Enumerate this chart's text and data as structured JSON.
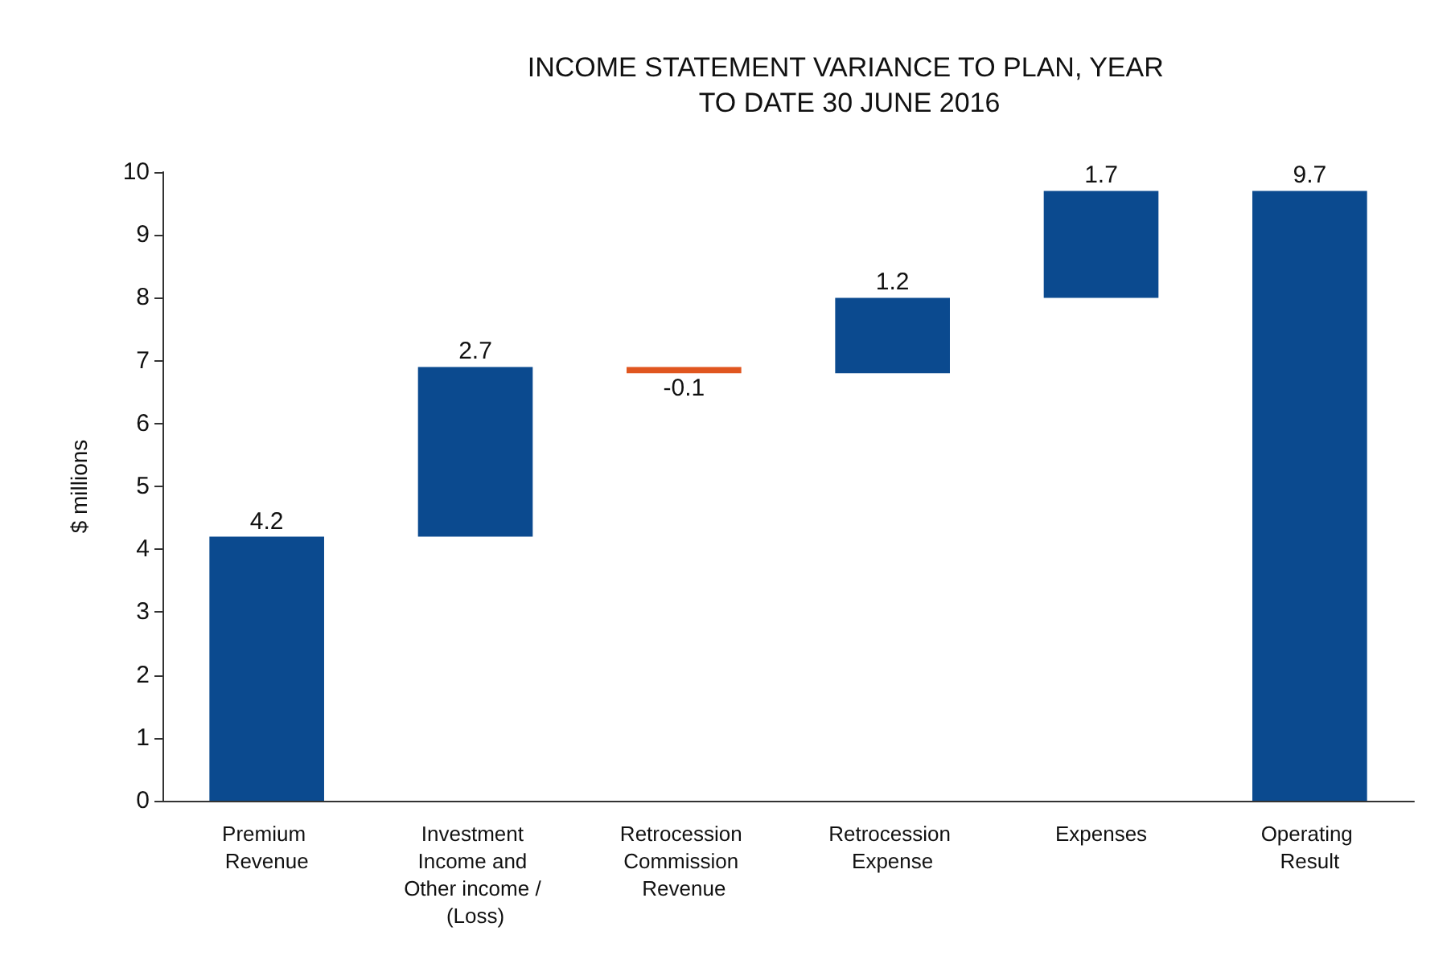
{
  "chart_data": {
    "type": "bar",
    "title": "INCOME STATEMENT VARIANCE TO PLAN, YEAR TO DATE 30 JUNE 2016",
    "ylabel": "$ millions",
    "categories": [
      "Premium Revenue",
      "Investment Income and Other income / (Loss)",
      "Retrocession Commission Revenue",
      "Retrocession Expense",
      "Expenses",
      "Operating Result"
    ],
    "values": [
      4.2,
      2.7,
      -0.1,
      1.2,
      1.7,
      9.7
    ],
    "base": [
      0,
      4.2,
      6.9,
      6.8,
      8.0,
      0
    ],
    "colors": [
      "#0b4a8f",
      "#0b4a8f",
      "#e0561f",
      "#0b4a8f",
      "#0b4a8f",
      "#0b4a8f"
    ],
    "ylim": [
      0,
      10
    ],
    "yticks": [
      0,
      1,
      2,
      3,
      4,
      5,
      6,
      7,
      8,
      9,
      10
    ],
    "grid": false,
    "data_labels": true
  }
}
